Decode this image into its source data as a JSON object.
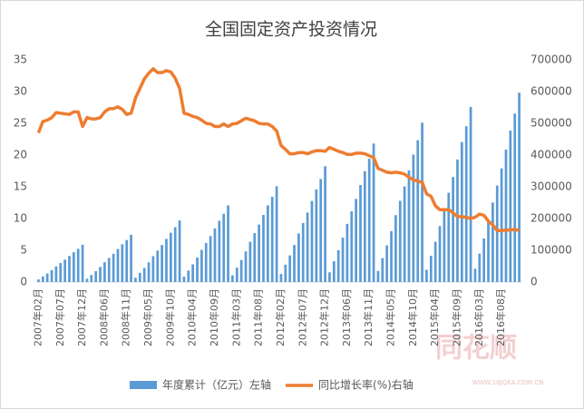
{
  "chart_data": {
    "type": "combo",
    "title": "全国固定资产投资情况",
    "categories": [
      "2007年02月",
      null,
      null,
      null,
      null,
      "2007年07月",
      null,
      null,
      null,
      null,
      "2007年12月",
      null,
      null,
      null,
      null,
      "2008年06月",
      null,
      null,
      null,
      null,
      "2008年11月",
      null,
      null,
      null,
      null,
      "2009年05月",
      null,
      null,
      null,
      null,
      "2009年10月",
      null,
      null,
      null,
      null,
      "2010年04月",
      null,
      null,
      null,
      null,
      "2010年09月",
      null,
      null,
      null,
      null,
      "2011年03月",
      null,
      null,
      null,
      null,
      "2011年08月",
      null,
      null,
      null,
      null,
      "2012年02月",
      null,
      null,
      null,
      null,
      "2012年07月",
      null,
      null,
      null,
      null,
      "2012年12月",
      null,
      null,
      null,
      null,
      "2013年06月",
      null,
      null,
      null,
      null,
      "2013年11月",
      null,
      null,
      null,
      null,
      "2014年05月",
      null,
      null,
      null,
      null,
      "2014年10月",
      null,
      null,
      null,
      null,
      "2015年04月",
      null,
      null,
      null,
      null,
      "2015年09月",
      null,
      null,
      null,
      null,
      "2016年03月",
      null,
      null,
      null,
      null,
      "2016年08月",
      null,
      null,
      null,
      null
    ],
    "series": [
      {
        "name": "年度累计（亿元）左轴",
        "type": "bar",
        "axis": "y2",
        "color": "#5b9bd5",
        "values": [
          8200,
          17600,
          27000,
          37600,
          49300,
          59900,
          70500,
          82200,
          94000,
          104500,
          117500,
          10400,
          22300,
          34200,
          47600,
          62500,
          75800,
          89200,
          104100,
          119000,
          132300,
          148700,
          13600,
          29100,
          44600,
          62100,
          81500,
          99000,
          116500,
          135900,
          155300,
          172700,
          194100,
          16900,
          36200,
          55500,
          77200,
          101400,
          123100,
          144800,
          169000,
          193100,
          214800,
          241400,
          21100,
          45300,
          69400,
          96600,
          126800,
          154000,
          181100,
          211300,
          241500,
          268700,
          301900,
          25500,
          54700,
          83900,
          116700,
          153200,
          186000,
          218900,
          255400,
          291800,
          324700,
          364800,
          30600,
          65500,
          100400,
          139700,
          183300,
          222600,
          261900,
          305600,
          349200,
          388500,
          436500,
          35100,
          75300,
          115500,
          160600,
          210800,
          256000,
          301200,
          351400,
          401600,
          446800,
          502000,
          38600,
          82700,
          126900,
          176500,
          231700,
          281300,
          331000,
          386100,
          441300,
          490900,
          551600,
          41800,
          89500,
          137200,
          190900,
          250500,
          304200,
          357900,
          417600,
          477200,
          530900,
          596500
        ]
      },
      {
        "name": "同比增长率(%)右轴",
        "type": "line",
        "axis": "y",
        "color": "#ed7d31",
        "values": [
          23.5,
          25.3,
          25.5,
          25.9,
          26.7,
          26.6,
          26.5,
          26.4,
          26.8,
          26.8,
          24.5,
          25.9,
          25.7,
          25.7,
          25.9,
          26.8,
          27.3,
          27.3,
          27.6,
          27.2,
          26.4,
          26.6,
          29.0,
          30.5,
          32.0,
          32.9,
          33.6,
          33.0,
          33.0,
          33.3,
          33.1,
          32.1,
          30.5,
          26.6,
          26.4,
          26.1,
          25.9,
          25.5,
          25.0,
          24.9,
          24.5,
          24.5,
          24.9,
          24.5,
          24.9,
          25.0,
          25.4,
          25.8,
          25.6,
          25.4,
          25.0,
          24.9,
          24.9,
          24.5,
          23.8,
          21.5,
          20.9,
          20.2,
          20.2,
          20.4,
          20.4,
          20.2,
          20.5,
          20.7,
          20.7,
          20.6,
          21.2,
          20.9,
          20.6,
          20.4,
          20.1,
          20.1,
          20.3,
          20.3,
          20.2,
          19.9,
          19.6,
          17.9,
          17.6,
          17.3,
          17.2,
          17.3,
          17.2,
          17.0,
          16.5,
          16.1,
          15.9,
          15.7,
          13.9,
          13.5,
          12.0,
          11.4,
          11.4,
          11.4,
          10.9,
          10.3,
          10.3,
          10.2,
          10.0,
          10.2,
          10.7,
          10.5,
          9.6,
          9.0,
          8.1,
          8.1,
          8.2,
          8.2,
          8.3,
          8.1
        ]
      }
    ],
    "ylim": [
      0,
      35
    ],
    "yticks": [
      0,
      5,
      10,
      15,
      20,
      25,
      30,
      35
    ],
    "y2lim": [
      0,
      700000
    ],
    "y2ticks": [
      0,
      100000,
      200000,
      300000,
      400000,
      500000,
      600000,
      700000
    ],
    "grid": false,
    "legend": "bottom",
    "watermark": "同花顺",
    "watermark_url": "WWW.10JQKA.COM.CN"
  }
}
